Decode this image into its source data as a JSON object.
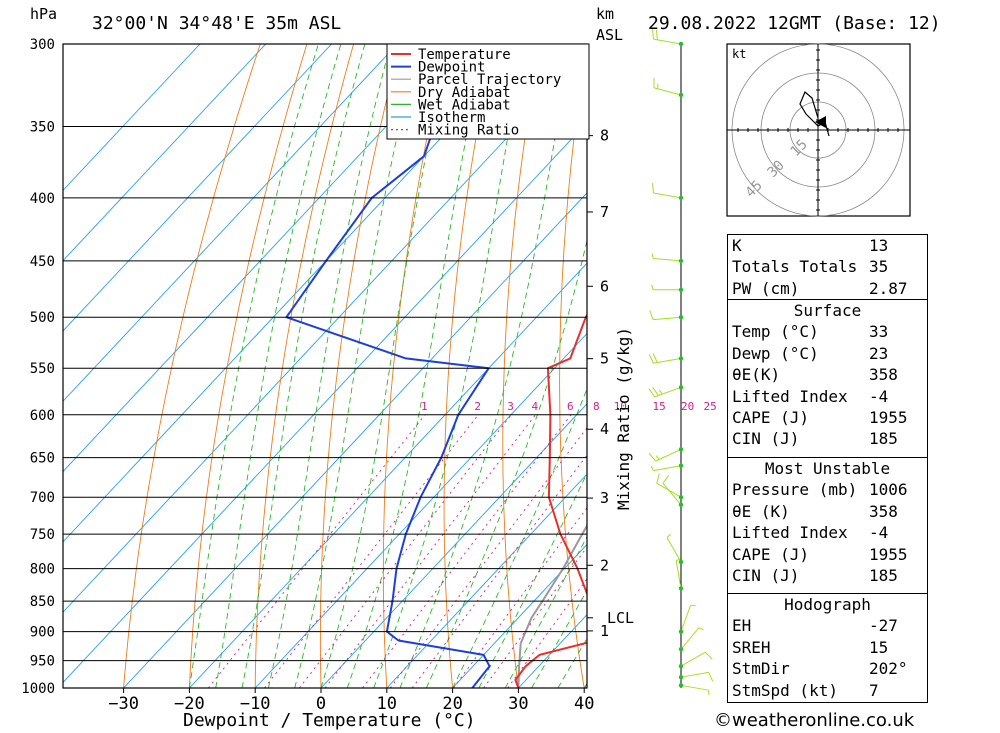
{
  "header": {
    "hpa_label": "hPa",
    "location": "32°00'N  34°48'E  35m  ASL",
    "km_label": "km",
    "asl_label": "ASL",
    "datetime": "29.08.2022  12GMT  (Base: 12)"
  },
  "chart_data": {
    "type": "skew-t",
    "title": "32°00'N  34°48'E  35m  ASL",
    "xlabel": "Dewpoint / Temperature (°C)",
    "ylabel": "hPa",
    "x_ticks": [
      -30,
      -20,
      -10,
      0,
      10,
      20,
      30,
      40
    ],
    "pressure_levels": [
      300,
      350,
      400,
      450,
      500,
      550,
      600,
      650,
      700,
      750,
      800,
      850,
      900,
      950,
      1000
    ],
    "km_ticks": [
      {
        "km": 1,
        "label": "1"
      },
      {
        "km": 2,
        "label": "2"
      },
      {
        "km": 3,
        "label": "3"
      },
      {
        "km": 4,
        "label": "4"
      },
      {
        "km": 5,
        "label": "5"
      },
      {
        "km": 6,
        "label": "6"
      },
      {
        "km": 7,
        "label": "7"
      },
      {
        "km": 8,
        "label": "8"
      }
    ],
    "lcl_label": "LCL",
    "lcl_pressure": 877,
    "mixing_ratio_axis_label": "Mixing Ratio (g/kg)",
    "mixing_ratios": [
      1,
      2,
      3,
      4,
      6,
      8,
      10,
      15,
      20,
      25
    ],
    "legend": [
      "Temperature",
      "Dewpoint",
      "Parcel Trajectory",
      "Dry Adiabat",
      "Wet Adiabat",
      "Isotherm",
      "Mixing Ratio"
    ],
    "colors": {
      "temperature": "#e8302a",
      "dewpoint": "#1e3fd8",
      "parcel": "#9a9a9a",
      "dry_adiabat": "#ef7d1a",
      "wet_adiabat": "#2ab82a",
      "isotherm": "#28a0e8",
      "mixing_ratio": "#d0208c"
    },
    "series": [
      {
        "name": "Temperature",
        "points": [
          [
            1000,
            30.0
          ],
          [
            985,
            28.4
          ],
          [
            960,
            28.0
          ],
          [
            940,
            28.5
          ],
          [
            915,
            35.0
          ],
          [
            900,
            33.0
          ],
          [
            850,
            28.5
          ],
          [
            800,
            22.0
          ],
          [
            750,
            14.5
          ],
          [
            700,
            7.5
          ],
          [
            650,
            2.0
          ],
          [
            600,
            -4.0
          ],
          [
            550,
            -11.0
          ],
          [
            540,
            -9.0
          ],
          [
            500,
            -12.5
          ],
          [
            480,
            -13.5
          ],
          [
            450,
            -18.5
          ],
          [
            400,
            -25.0
          ],
          [
            380,
            -27.0
          ],
          [
            360,
            -30.0
          ],
          [
            300,
            -44.0
          ]
        ]
      },
      {
        "name": "Dewpoint",
        "points": [
          [
            1000,
            23.0
          ],
          [
            960,
            22.5
          ],
          [
            940,
            20.0
          ],
          [
            915,
            5.0
          ],
          [
            900,
            2.0
          ],
          [
            850,
            -1.5
          ],
          [
            800,
            -5.5
          ],
          [
            750,
            -9.0
          ],
          [
            700,
            -12.0
          ],
          [
            650,
            -14.5
          ],
          [
            600,
            -18.0
          ],
          [
            550,
            -20.0
          ],
          [
            540,
            -34.0
          ],
          [
            500,
            -58.0
          ],
          [
            450,
            -60.0
          ],
          [
            400,
            -62.0
          ],
          [
            370,
            -60.0
          ],
          [
            300,
            -70.0
          ]
        ]
      },
      {
        "name": "Parcel Trajectory",
        "points": [
          [
            1000,
            30.0
          ],
          [
            960,
            27.0
          ],
          [
            920,
            24.0
          ],
          [
            877,
            22.0
          ],
          [
            850,
            21.3
          ],
          [
            800,
            19.8
          ],
          [
            750,
            17.8
          ],
          [
            700,
            15.8
          ],
          [
            650,
            13.2
          ],
          [
            600,
            9.8
          ],
          [
            550,
            5.4
          ],
          [
            500,
            -0.2
          ],
          [
            450,
            -7.0
          ],
          [
            400,
            -15.0
          ],
          [
            370,
            -21.0
          ]
        ]
      }
    ],
    "wind_barbs": [
      {
        "p": 300,
        "dir": 280,
        "kt": 20
      },
      {
        "p": 330,
        "dir": 285,
        "kt": 15
      },
      {
        "p": 400,
        "dir": 280,
        "kt": 10
      },
      {
        "p": 450,
        "dir": 275,
        "kt": 5
      },
      {
        "p": 475,
        "dir": 270,
        "kt": 5
      },
      {
        "p": 500,
        "dir": 265,
        "kt": 10
      },
      {
        "p": 540,
        "dir": 260,
        "kt": 20
      },
      {
        "p": 570,
        "dir": 250,
        "kt": 25
      },
      {
        "p": 640,
        "dir": 245,
        "kt": 15
      },
      {
        "p": 660,
        "dir": 260,
        "kt": 5
      },
      {
        "p": 700,
        "dir": 300,
        "kt": 10
      },
      {
        "p": 710,
        "dir": 320,
        "kt": 10
      },
      {
        "p": 790,
        "dir": 330,
        "kt": 5
      },
      {
        "p": 830,
        "dir": 350,
        "kt": 5
      },
      {
        "p": 900,
        "dir": 20,
        "kt": 5
      },
      {
        "p": 930,
        "dir": 40,
        "kt": 5
      },
      {
        "p": 960,
        "dir": 60,
        "kt": 10
      },
      {
        "p": 980,
        "dir": 80,
        "kt": 10
      },
      {
        "p": 995,
        "dir": 100,
        "kt": 5
      }
    ],
    "hodograph": {
      "unit_label": "kt",
      "ring_labels": [
        "15",
        "30",
        "45"
      ]
    }
  },
  "indices": {
    "general": [
      {
        "label": "K",
        "value": "13"
      },
      {
        "label": "Totals Totals",
        "value": "35"
      },
      {
        "label": "PW (cm)",
        "value": "2.87"
      }
    ],
    "surface_title": "Surface",
    "surface": [
      {
        "label": "Temp (°C)",
        "value": "33"
      },
      {
        "label": "Dewp (°C)",
        "value": "23"
      },
      {
        "label": "θE(K)",
        "value": "358"
      },
      {
        "label": "Lifted Index",
        "value": "-4"
      },
      {
        "label": "CAPE (J)",
        "value": "1955"
      },
      {
        "label": "CIN (J)",
        "value": "185"
      }
    ],
    "unstable_title": "Most Unstable",
    "unstable": [
      {
        "label": "Pressure (mb)",
        "value": "1006"
      },
      {
        "label": "θE (K)",
        "value": "358"
      },
      {
        "label": "Lifted Index",
        "value": "-4"
      },
      {
        "label": "CAPE (J)",
        "value": "1955"
      },
      {
        "label": "CIN (J)",
        "value": "185"
      }
    ],
    "hodo_title": "Hodograph",
    "hodo": [
      {
        "label": "EH",
        "value": "-27"
      },
      {
        "label": "SREH",
        "value": "15"
      },
      {
        "label": "StmDir",
        "value": "202°"
      },
      {
        "label": "StmSpd (kt)",
        "value": "7"
      }
    ]
  },
  "credit": "©weatheronline.co.uk"
}
